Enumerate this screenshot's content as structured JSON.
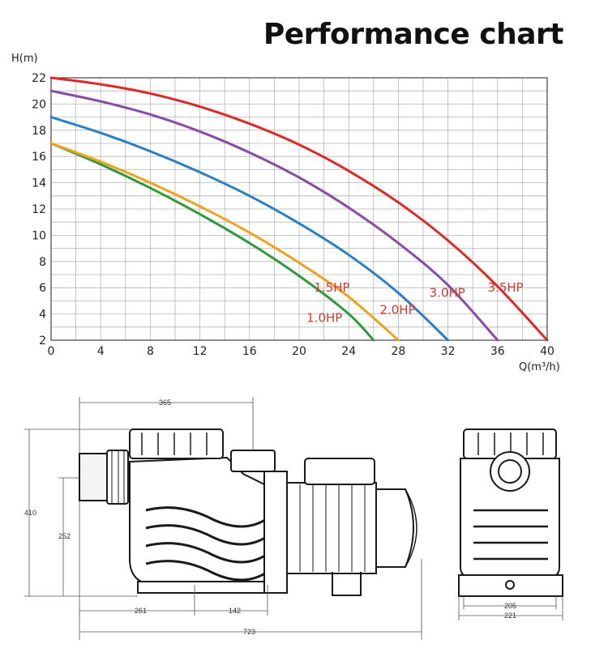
{
  "page": {
    "title": "Performance chart"
  },
  "chart_data": {
    "type": "line",
    "title": "Performance chart",
    "xlabel": "Q(m³/h)",
    "ylabel": "H(m)",
    "xlim": [
      0,
      40
    ],
    "ylim": [
      2,
      22
    ],
    "x_ticks": [
      0,
      4,
      8,
      12,
      16,
      20,
      24,
      28,
      32,
      36,
      40
    ],
    "y_ticks": [
      2,
      4,
      6,
      8,
      10,
      12,
      14,
      16,
      18,
      20,
      22
    ],
    "grid": true,
    "series": [
      {
        "name": "1.0HP",
        "color": "#2e9a3c",
        "points": [
          [
            0,
            17
          ],
          [
            4,
            15.4
          ],
          [
            8,
            13.6
          ],
          [
            12,
            11.6
          ],
          [
            16,
            9.4
          ],
          [
            20,
            6.9
          ],
          [
            24,
            4.0
          ],
          [
            26,
            2.0
          ]
        ]
      },
      {
        "name": "1.5HP",
        "color": "#f0a21b",
        "points": [
          [
            0,
            17
          ],
          [
            4,
            15.6
          ],
          [
            8,
            14.0
          ],
          [
            12,
            12.2
          ],
          [
            16,
            10.2
          ],
          [
            20,
            7.9
          ],
          [
            24,
            5.3
          ],
          [
            28,
            2.0
          ]
        ]
      },
      {
        "name": "2.0HP",
        "color": "#2b7fc4",
        "points": [
          [
            0,
            19
          ],
          [
            4,
            17.8
          ],
          [
            8,
            16.4
          ],
          [
            12,
            14.8
          ],
          [
            16,
            13.0
          ],
          [
            20,
            10.9
          ],
          [
            24,
            8.5
          ],
          [
            28,
            5.6
          ],
          [
            32,
            2.0
          ]
        ]
      },
      {
        "name": "3.0HP",
        "color": "#8a4aa8",
        "points": [
          [
            0,
            21
          ],
          [
            4,
            20.2
          ],
          [
            8,
            19.2
          ],
          [
            12,
            17.9
          ],
          [
            16,
            16.3
          ],
          [
            20,
            14.4
          ],
          [
            24,
            12.1
          ],
          [
            28,
            9.4
          ],
          [
            32,
            6.2
          ],
          [
            36,
            2.0
          ]
        ]
      },
      {
        "name": "3.5HP",
        "color": "#dd2a26",
        "points": [
          [
            0,
            22
          ],
          [
            4,
            21.5
          ],
          [
            8,
            20.8
          ],
          [
            12,
            19.8
          ],
          [
            16,
            18.5
          ],
          [
            20,
            16.9
          ],
          [
            24,
            14.9
          ],
          [
            28,
            12.5
          ],
          [
            32,
            9.6
          ],
          [
            36,
            6.1
          ],
          [
            40,
            2.0
          ]
        ]
      }
    ]
  },
  "drawing": {
    "dimensions": {
      "top_width": "365",
      "overall_height": "410",
      "inlet_height": "252",
      "inlet_offset": "261",
      "foot_spacing": "142",
      "overall_length": "723",
      "base_inner_width": "205",
      "base_outer_width": "221"
    }
  }
}
